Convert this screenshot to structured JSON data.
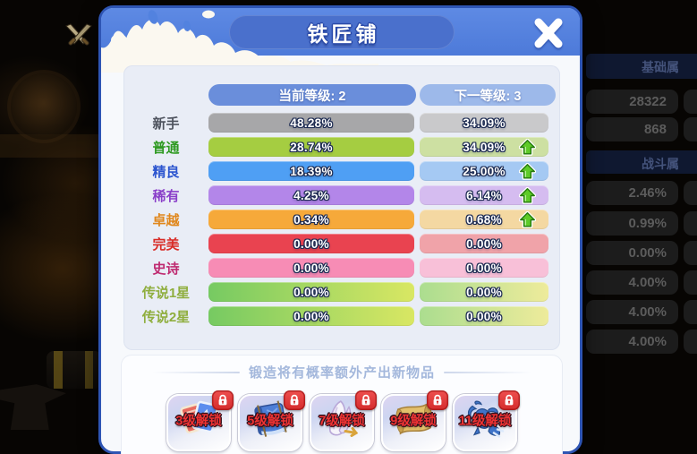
{
  "window": {
    "title": "铁匠铺"
  },
  "table": {
    "current_header": "当前等级: 2",
    "next_header": "下一等级: 3",
    "up_arrow_color": "#5ecb28",
    "rows": [
      {
        "label": "新手",
        "label_color": "#4e535e",
        "current": "48.28%",
        "next": "34.09%",
        "up": false,
        "bar": [
          "#a7a7a9"
        ],
        "bar_next": [
          "#c9c9cb"
        ]
      },
      {
        "label": "普通",
        "label_color": "#2f9a22",
        "current": "28.74%",
        "next": "34.09%",
        "up": true,
        "bar": [
          "#a5cd41"
        ],
        "bar_next": [
          "#cde0a2"
        ]
      },
      {
        "label": "精良",
        "label_color": "#2c55cf",
        "current": "18.39%",
        "next": "25.00%",
        "up": true,
        "bar": [
          "#4f9ff4"
        ],
        "bar_next": [
          "#a5c9f3"
        ]
      },
      {
        "label": "稀有",
        "label_color": "#8a3fc9",
        "current": "4.25%",
        "next": "6.14%",
        "up": true,
        "bar": [
          "#b386e9"
        ],
        "bar_next": [
          "#d5bcf0"
        ]
      },
      {
        "label": "卓越",
        "label_color": "#e0871c",
        "current": "0.34%",
        "next": "0.68%",
        "up": true,
        "bar": [
          "#f6a93a"
        ],
        "bar_next": [
          "#f4d8a2"
        ]
      },
      {
        "label": "完美",
        "label_color": "#d92b26",
        "current": "0.00%",
        "next": "0.00%",
        "up": false,
        "bar": [
          "#e94350"
        ],
        "bar_next": [
          "#f0a3a9"
        ]
      },
      {
        "label": "史诗",
        "label_color": "#bf2a70",
        "current": "0.00%",
        "next": "0.00%",
        "up": false,
        "bar": [
          "#f78cb5"
        ],
        "bar_next": [
          "#f8c0d8"
        ]
      },
      {
        "label": "传说1星",
        "label_color": "#8fae3e",
        "current": "0.00%",
        "next": "0.00%",
        "up": false,
        "bar": [
          "#76ca62",
          "#d9e763"
        ],
        "bar_next": [
          "#abdd8f",
          "#eeeb9b"
        ]
      },
      {
        "label": "传说2星",
        "label_color": "#8fae3e",
        "current": "0.00%",
        "next": "0.00%",
        "up": false,
        "bar": [
          "#76ca62",
          "#d9e763"
        ],
        "bar_next": [
          "#abdd8f",
          "#eeeb9b"
        ]
      }
    ]
  },
  "footer": {
    "note": "锻造将有概率额外产出新物品",
    "unlocks": [
      {
        "label": "3级解锁",
        "icon": "cards-icon"
      },
      {
        "label": "5级解锁",
        "icon": "book-icon"
      },
      {
        "label": "7级解锁",
        "icon": "shell-icon"
      },
      {
        "label": "9级解锁",
        "icon": "scroll-icon"
      },
      {
        "label": "11级解锁",
        "icon": "scorpion-icon"
      }
    ]
  },
  "background_panel": {
    "sections": [
      {
        "title": "基础属",
        "values": [
          "28322",
          "868"
        ]
      },
      {
        "title": "战斗属",
        "values": [
          "2.46%",
          "0.99%",
          "0.00%",
          "4.00%",
          "4.00%",
          "4.00%"
        ]
      }
    ]
  }
}
